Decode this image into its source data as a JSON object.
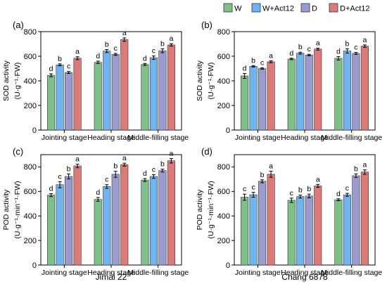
{
  "legend": [
    {
      "name": "W",
      "color": "#7fc08a"
    },
    {
      "name": "W+Act12",
      "color": "#6fb4ee"
    },
    {
      "name": "D",
      "color": "#9a9cd0"
    },
    {
      "name": "D+Act12",
      "color": "#dc7a7a"
    }
  ],
  "ylabels": {
    "sod": [
      "SOD activity",
      "(U·g⁻¹·FW)"
    ],
    "pod": [
      "POD activity",
      "(U·g⁻¹·min⁻¹·FW)"
    ]
  },
  "cultivars": [
    "Jimai 22",
    "Chang 6878"
  ],
  "chart_data": [
    {
      "panel": "(a)",
      "type": "bar",
      "categories": [
        "Jointing stage",
        "Heading stage",
        "Middle-filling stage"
      ],
      "ylim": [
        0,
        800
      ],
      "yticks": [
        0,
        200,
        400,
        600,
        800
      ],
      "ylabel": "SOD activity (U·g⁻¹·FW)",
      "series": [
        {
          "name": "W",
          "values": [
            445,
            550,
            533
          ],
          "errors": [
            12,
            10,
            8
          ],
          "letters": [
            "d",
            "d",
            "d"
          ]
        },
        {
          "name": "W+Act12",
          "values": [
            530,
            642,
            588
          ],
          "errors": [
            8,
            12,
            14
          ],
          "letters": [
            "b",
            "b",
            "c"
          ]
        },
        {
          "name": "D",
          "values": [
            468,
            615,
            645
          ],
          "errors": [
            8,
            8,
            16
          ],
          "letters": [
            "c",
            "c",
            "b"
          ]
        },
        {
          "name": "D+Act12",
          "values": [
            584,
            735,
            692
          ],
          "errors": [
            12,
            14,
            10
          ],
          "letters": [
            "a",
            "a",
            "a"
          ]
        }
      ]
    },
    {
      "panel": "(b)",
      "type": "bar",
      "categories": [
        "Jointing stage",
        "Heading stage",
        "Middle-filling stage"
      ],
      "ylim": [
        0,
        800
      ],
      "yticks": [
        0,
        200,
        400,
        600,
        800
      ],
      "ylabel": "SOD activity (U·g⁻¹·FW)",
      "series": [
        {
          "name": "W",
          "values": [
            440,
            578,
            583
          ],
          "errors": [
            20,
            6,
            14
          ],
          "letters": [
            "d",
            "d",
            "d"
          ]
        },
        {
          "name": "W+Act12",
          "values": [
            518,
            625,
            643
          ],
          "errors": [
            6,
            8,
            18
          ],
          "letters": [
            "b",
            "b",
            "b"
          ]
        },
        {
          "name": "D",
          "values": [
            500,
            610,
            623
          ],
          "errors": [
            6,
            6,
            8
          ],
          "letters": [
            "c",
            "c",
            "c"
          ]
        },
        {
          "name": "D+Act12",
          "values": [
            555,
            658,
            682
          ],
          "errors": [
            8,
            8,
            10
          ],
          "letters": [
            "a",
            "a",
            "a"
          ]
        }
      ]
    },
    {
      "panel": "(c)",
      "type": "bar",
      "categories": [
        "Jointing stage",
        "Heading stage",
        "Middle-filling stage"
      ],
      "ylim": [
        0,
        900
      ],
      "yticks": [
        0,
        200,
        400,
        600,
        800
      ],
      "ylabel": "POD activity (U·g⁻¹·min⁻¹·FW)",
      "series": [
        {
          "name": "W",
          "values": [
            570,
            535,
            693
          ],
          "errors": [
            12,
            15,
            12
          ],
          "letters": [
            "d",
            "d",
            "d"
          ]
        },
        {
          "name": "W+Act12",
          "values": [
            655,
            640,
            722
          ],
          "errors": [
            25,
            15,
            15
          ],
          "letters": [
            "c",
            "c",
            "c"
          ]
        },
        {
          "name": "D",
          "values": [
            722,
            740,
            770
          ],
          "errors": [
            20,
            25,
            12
          ],
          "letters": [
            "b",
            "b",
            "b"
          ]
        },
        {
          "name": "D+Act12",
          "values": [
            808,
            818,
            850
          ],
          "errors": [
            15,
            12,
            18
          ],
          "letters": [
            "a",
            "a",
            "a"
          ]
        }
      ]
    },
    {
      "panel": "(d)",
      "type": "bar",
      "categories": [
        "Jointing stage",
        "Heading stage",
        "Middle-filling stage"
      ],
      "ylim": [
        0,
        900
      ],
      "yticks": [
        0,
        200,
        400,
        600,
        800
      ],
      "ylabel": "POD activity (U·g⁻¹·min⁻¹·FW)",
      "series": [
        {
          "name": "W",
          "values": [
            553,
            528,
            532
          ],
          "errors": [
            25,
            18,
            8
          ],
          "letters": [
            "c",
            "c",
            "d"
          ]
        },
        {
          "name": "W+Act12",
          "values": [
            573,
            558,
            572
          ],
          "errors": [
            20,
            12,
            12
          ],
          "letters": [
            "c",
            "b",
            "c"
          ]
        },
        {
          "name": "D",
          "values": [
            683,
            563,
            728
          ],
          "errors": [
            12,
            15,
            15
          ],
          "letters": [
            "b",
            "b",
            "b"
          ]
        },
        {
          "name": "D+Act12",
          "values": [
            740,
            645,
            758
          ],
          "errors": [
            25,
            12,
            18
          ],
          "letters": [
            "a",
            "a",
            "a"
          ]
        }
      ]
    }
  ]
}
